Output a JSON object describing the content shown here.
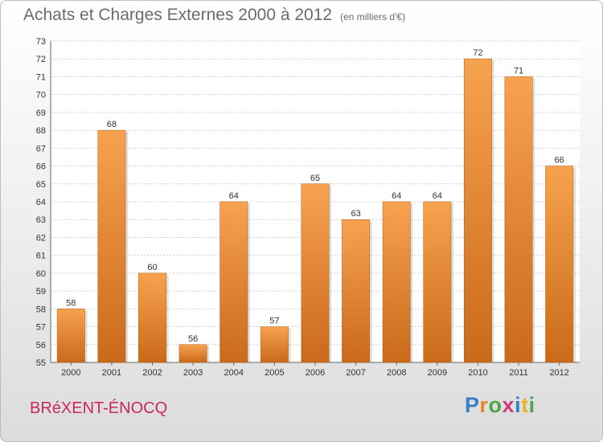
{
  "chart_data": {
    "type": "bar",
    "title": "Achats et Charges Externes 2000 à 2012",
    "subtitle": "(en milliers d'€)",
    "categories": [
      "2000",
      "2001",
      "2002",
      "2003",
      "2004",
      "2005",
      "2006",
      "2007",
      "2008",
      "2009",
      "2010",
      "2011",
      "2012"
    ],
    "values": [
      58,
      68,
      60,
      56,
      64,
      57,
      65,
      63,
      64,
      64,
      72,
      71,
      66
    ],
    "ylim": [
      55,
      73
    ],
    "yticks": [
      55,
      56,
      57,
      58,
      59,
      60,
      61,
      62,
      63,
      64,
      65,
      66,
      67,
      68,
      69,
      70,
      71,
      72,
      73
    ],
    "grid": true,
    "bar_color_top": "#f7a24f",
    "bar_color_bottom": "#c96a1a"
  },
  "footer": {
    "city": "BRéXENT-ÉNOCQ",
    "logo_letters": [
      "P",
      "r",
      "o",
      "x",
      "i",
      "t",
      "i"
    ],
    "logo_colors": [
      "#3a7fc4",
      "#e8832a",
      "#4aa54a",
      "#d43a7a",
      "#3a7fc4",
      "#e8b52a",
      "#4aa54a"
    ]
  }
}
